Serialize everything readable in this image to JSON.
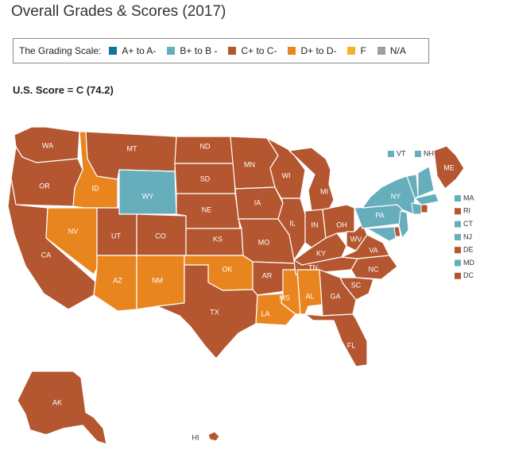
{
  "title": "Overall Grades & Scores (2017)",
  "legend": {
    "lead": "The Grading Scale:",
    "items": [
      {
        "label": "A+ to A-",
        "color": "#1273a1"
      },
      {
        "label": "B+ to B -",
        "color": "#67aebd"
      },
      {
        "label": "C+ to C-",
        "color": "#b4562f"
      },
      {
        "label": "D+ to D-",
        "color": "#e9851f"
      },
      {
        "label": "F",
        "color": "#f6b12a"
      },
      {
        "label": "N/A",
        "color": "#a09f98"
      }
    ]
  },
  "us_score": "U.S. Score = C (74.2)",
  "grade_colors": {
    "B": "#67aebd",
    "C": "#b4562f",
    "D": "#e9851f"
  },
  "states": [
    {
      "code": "WA",
      "grade": "C"
    },
    {
      "code": "OR",
      "grade": "C"
    },
    {
      "code": "CA",
      "grade": "C"
    },
    {
      "code": "ID",
      "grade": "D"
    },
    {
      "code": "NV",
      "grade": "D"
    },
    {
      "code": "MT",
      "grade": "C"
    },
    {
      "code": "WY",
      "grade": "B"
    },
    {
      "code": "UT",
      "grade": "C"
    },
    {
      "code": "CO",
      "grade": "C"
    },
    {
      "code": "AZ",
      "grade": "D"
    },
    {
      "code": "NM",
      "grade": "D"
    },
    {
      "code": "ND",
      "grade": "C"
    },
    {
      "code": "SD",
      "grade": "C"
    },
    {
      "code": "NE",
      "grade": "C"
    },
    {
      "code": "KS",
      "grade": "C"
    },
    {
      "code": "OK",
      "grade": "D"
    },
    {
      "code": "TX",
      "grade": "C"
    },
    {
      "code": "MN",
      "grade": "C"
    },
    {
      "code": "IA",
      "grade": "C"
    },
    {
      "code": "MO",
      "grade": "C"
    },
    {
      "code": "AR",
      "grade": "C"
    },
    {
      "code": "LA",
      "grade": "D"
    },
    {
      "code": "WI",
      "grade": "C"
    },
    {
      "code": "IL",
      "grade": "C"
    },
    {
      "code": "MS",
      "grade": "D"
    },
    {
      "code": "MI",
      "grade": "C"
    },
    {
      "code": "IN",
      "grade": "C"
    },
    {
      "code": "KY",
      "grade": "C"
    },
    {
      "code": "TN",
      "grade": "C"
    },
    {
      "code": "AL",
      "grade": "D"
    },
    {
      "code": "OH",
      "grade": "C"
    },
    {
      "code": "WV",
      "grade": "C"
    },
    {
      "code": "VA",
      "grade": "C"
    },
    {
      "code": "NC",
      "grade": "C"
    },
    {
      "code": "SC",
      "grade": "C"
    },
    {
      "code": "GA",
      "grade": "C"
    },
    {
      "code": "FL",
      "grade": "C"
    },
    {
      "code": "PA",
      "grade": "B"
    },
    {
      "code": "NY",
      "grade": "B"
    },
    {
      "code": "ME",
      "grade": "C"
    },
    {
      "code": "AK",
      "grade": "C"
    },
    {
      "code": "HI",
      "grade": "C"
    }
  ],
  "northeast_small": {
    "top": [
      {
        "code": "VT",
        "grade": "B"
      },
      {
        "code": "NH",
        "grade": "B"
      }
    ],
    "side": [
      {
        "code": "MA",
        "grade": "B"
      },
      {
        "code": "RI",
        "grade": "C"
      },
      {
        "code": "CT",
        "grade": "B"
      },
      {
        "code": "NJ",
        "grade": "B"
      },
      {
        "code": "DE",
        "grade": "C"
      },
      {
        "code": "MD",
        "grade": "B"
      },
      {
        "code": "DC",
        "grade": "C"
      }
    ]
  }
}
